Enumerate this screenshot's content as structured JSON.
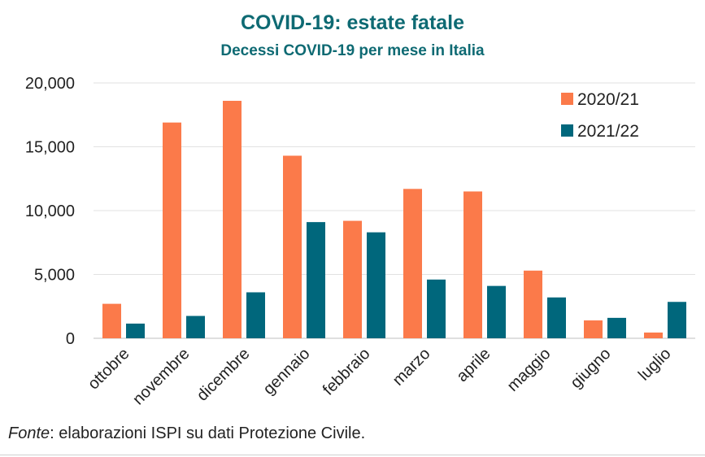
{
  "header": {
    "title": "COVID-19: estate fatale",
    "subtitle": "Decessi COVID-19 per mese in Italia"
  },
  "footer": {
    "source_prefix": "Fonte",
    "source_text": ": elaborazioni ISPI su dati Protezione Civile."
  },
  "colors": {
    "series_2020": "#fb7a4a",
    "series_2021": "#00677c",
    "title": "#0e6a73"
  },
  "chart_data": {
    "type": "bar",
    "title": "COVID-19: estate fatale",
    "subtitle": "Decessi COVID-19 per mese in Italia",
    "xlabel": "",
    "ylabel": "",
    "ylim": [
      0,
      20000
    ],
    "yticks": [
      0,
      5000,
      10000,
      15000,
      20000
    ],
    "ytick_labels": [
      "0",
      "5,000",
      "10,000",
      "15,000",
      "20,000"
    ],
    "grid": true,
    "legend_position": "top-right",
    "categories": [
      "ottobre",
      "novembre",
      "dicembre",
      "gennaio",
      "febbraio",
      "marzo",
      "aprile",
      "maggio",
      "giugno",
      "luglio"
    ],
    "series": [
      {
        "name": "2020/21",
        "color": "#fb7a4a",
        "values": [
          2700,
          16900,
          18600,
          14300,
          9200,
          11700,
          11500,
          5300,
          1400,
          450
        ]
      },
      {
        "name": "2021/22",
        "color": "#00677c",
        "values": [
          1150,
          1750,
          3600,
          9100,
          8300,
          4600,
          4100,
          3200,
          1600,
          2850
        ]
      }
    ]
  }
}
